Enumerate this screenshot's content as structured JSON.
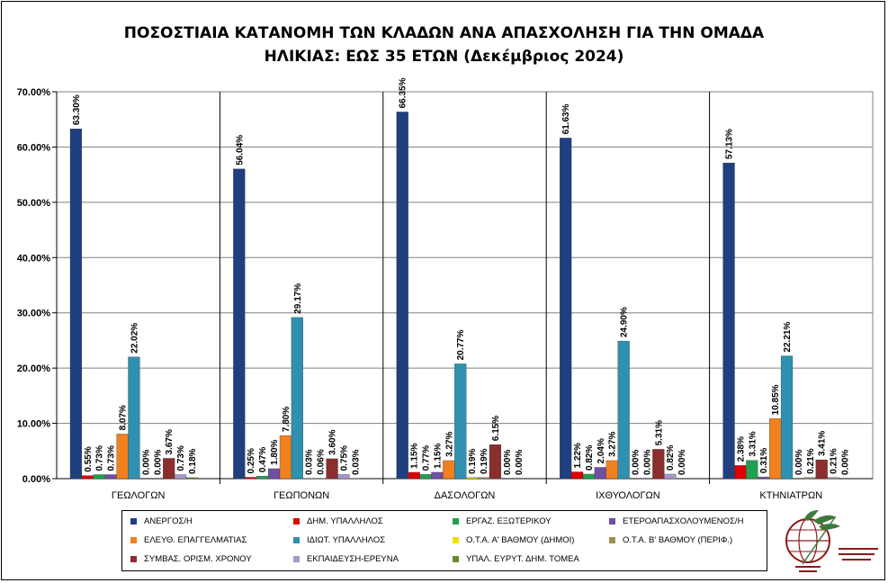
{
  "chart_data": {
    "type": "bar",
    "title_line1": "ΠΟΣΟΣΤΙΑΙΑ ΚΑΤΑΝΟΜΗ ΤΩΝ ΚΛΑΔΩΝ ΑΝΑ ΑΠΑΣΧΟΛΗΣΗ ΓΙΑ ΤΗΝ ΟΜΑΔΑ",
    "title_line2": "ΗΛΙΚΙΑΣ: ΕΩΣ 35 ΕΤΩΝ (Δεκέμβριος 2024)",
    "categories": [
      "ΓΕΩΛΟΓΩΝ",
      "ΓΕΩΠΟΝΩΝ",
      "ΔΑΣΟΛΟΓΩΝ",
      "ΙΧΘΥΟΛΟΓΩΝ",
      "ΚΤΗΝΙΑΤΡΩΝ"
    ],
    "ylim": [
      0,
      70
    ],
    "yticks": [
      "0.00%",
      "10.00%",
      "20.00%",
      "30.00%",
      "40.00%",
      "50.00%",
      "60.00%",
      "70.00%"
    ],
    "series": [
      {
        "name": "ΑΝΕΡΓΟΣ/Η",
        "color": "#1F3F7F",
        "values": [
          63.3,
          56.04,
          66.35,
          61.63,
          57.13
        ],
        "labels": [
          "63.30%",
          "56.04%",
          "66.35%",
          "61.63%",
          "57.13%"
        ]
      },
      {
        "name": "ΔΗΜ. ΥΠΑΛΛΗΛΟΣ",
        "color": "#E00000",
        "values": [
          0.55,
          0.25,
          1.15,
          1.22,
          2.38
        ],
        "labels": [
          "0.55%",
          "0.25%",
          "1.15%",
          "1.22%",
          "2.38%"
        ]
      },
      {
        "name": "ΕΡΓΑΖ. ΕΞΩΤΕΡΙΚΟΥ",
        "color": "#1FA050",
        "values": [
          0.73,
          0.47,
          0.77,
          0.82,
          3.31
        ],
        "labels": [
          "0.73%",
          "0.47%",
          "0.77%",
          "0.82%",
          "3.31%"
        ]
      },
      {
        "name": "ΕΤΕΡΟΑΠΑΣΧΟΛΟΥΜΕΝΟΣ/Η",
        "color": "#7050A0",
        "values": [
          0.73,
          1.8,
          1.15,
          2.04,
          0.31
        ],
        "labels": [
          "0.73%",
          "1.80%",
          "1.15%",
          "2.04%",
          "0.31%"
        ]
      },
      {
        "name": "ΕΛΕΥΘ. ΕΠΑΓΓΕΛΜΑΤΙΑΣ",
        "color": "#F08020",
        "values": [
          8.07,
          7.8,
          3.27,
          3.27,
          10.85
        ],
        "labels": [
          "8.07%",
          "7.80%",
          "3.27%",
          "3.27%",
          "10.85%"
        ]
      },
      {
        "name": "ΙΔΙΩΤ. ΥΠΑΛΛΗΛΟΣ",
        "color": "#3090B0",
        "values": [
          22.02,
          29.17,
          20.77,
          24.9,
          22.21
        ],
        "labels": [
          "22.02%",
          "29.17%",
          "20.77%",
          "24.90%",
          "22.21%"
        ]
      },
      {
        "name": "Ο.Τ.Α. Α' ΒΑΘΜΟΥ (ΔΗΜΟΙ)",
        "color": "#F0E000",
        "values": [
          0.0,
          0.03,
          0.19,
          0.0,
          0.0
        ],
        "labels": [
          "0.00%",
          "0.03%",
          "0.19%",
          "0.00%",
          "0.00%"
        ]
      },
      {
        "name": "Ο.Τ.Α. Β' ΒΑΘΜΟΥ (ΠΕΡΙΦ.)",
        "color": "#A09050",
        "values": [
          0.0,
          0.06,
          0.19,
          0.0,
          0.21
        ],
        "labels": [
          "0.00%",
          "0.06%",
          "0.19%",
          "0.00%",
          "0.21%"
        ]
      },
      {
        "name": "ΣΥΜΒΑΣ. ΟΡΙΣΜ. ΧΡΟΝΟΥ",
        "color": "#8B2E2E",
        "values": [
          3.67,
          3.6,
          6.15,
          5.31,
          3.41
        ],
        "labels": [
          "3.67%",
          "3.60%",
          "6.15%",
          "5.31%",
          "3.41%"
        ]
      },
      {
        "name": "ΕΚΠΑΙΔΕΥΣΗ-ΕΡΕΥΝΑ",
        "color": "#A898C8",
        "values": [
          0.73,
          0.75,
          0.0,
          0.82,
          0.21
        ],
        "labels": [
          "0.73%",
          "0.75%",
          "0.00%",
          "0.82%",
          "0.21%"
        ]
      },
      {
        "name": "ΥΠΑΛ. ΕΥΡΥΤ. ΔΗΜ. ΤΟΜΕΑ",
        "color": "#6A8A30",
        "values": [
          0.18,
          0.03,
          0.0,
          0.0,
          0.0
        ],
        "labels": [
          "0.18%",
          "0.03%",
          "0.00%",
          "0.00%",
          "0.00%"
        ]
      }
    ]
  }
}
